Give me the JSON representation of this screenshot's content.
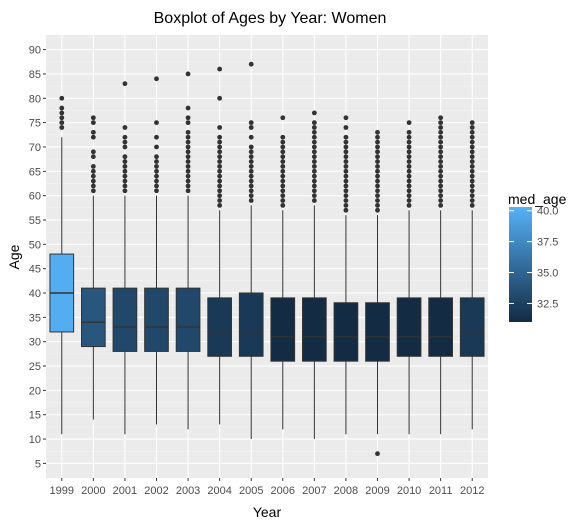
{
  "chart_data": {
    "type": "boxplot",
    "title": "Boxplot of Ages by Year: Women",
    "xlabel": "Year",
    "ylabel": "Age",
    "ylim": [
      2,
      93
    ],
    "yticks": [
      5,
      10,
      15,
      20,
      25,
      30,
      35,
      40,
      45,
      50,
      55,
      60,
      65,
      70,
      75,
      80,
      85,
      90
    ],
    "grid": true,
    "categories": [
      "1999",
      "2000",
      "2001",
      "2002",
      "2003",
      "2004",
      "2005",
      "2006",
      "2007",
      "2008",
      "2009",
      "2010",
      "2011",
      "2012"
    ],
    "boxes": [
      {
        "year": "1999",
        "min": 11,
        "q1": 32,
        "median": 40,
        "q3": 48,
        "max": 72,
        "med_age": 40,
        "outliers": [
          74,
          75,
          76,
          77,
          78,
          80
        ]
      },
      {
        "year": "2000",
        "min": 14,
        "q1": 29,
        "median": 34,
        "q3": 41,
        "max": 60,
        "med_age": 34,
        "outliers": [
          61,
          62,
          63,
          64,
          65,
          66,
          68,
          69,
          72,
          73,
          75,
          76
        ]
      },
      {
        "year": "2001",
        "min": 11,
        "q1": 28,
        "median": 33,
        "q3": 41,
        "max": 60,
        "med_age": 33,
        "outliers": [
          61,
          62,
          63,
          64,
          65,
          66,
          67,
          68,
          70,
          71,
          72,
          74,
          83
        ]
      },
      {
        "year": "2002",
        "min": 13,
        "q1": 28,
        "median": 33,
        "q3": 41,
        "max": 60,
        "med_age": 33,
        "outliers": [
          61,
          62,
          63,
          64,
          65,
          66,
          67,
          68,
          70,
          72,
          75,
          84
        ]
      },
      {
        "year": "2003",
        "min": 12,
        "q1": 28,
        "median": 33,
        "q3": 41,
        "max": 60,
        "med_age": 33,
        "outliers": [
          61,
          62,
          63,
          64,
          65,
          66,
          67,
          68,
          69,
          70,
          71,
          72,
          73,
          75,
          76,
          78,
          85
        ]
      },
      {
        "year": "2004",
        "min": 13,
        "q1": 27,
        "median": 32,
        "q3": 39,
        "max": 57,
        "med_age": 32,
        "outliers": [
          58,
          59,
          60,
          61,
          62,
          63,
          64,
          65,
          66,
          67,
          68,
          69,
          70,
          71,
          72,
          74,
          80,
          86
        ]
      },
      {
        "year": "2005",
        "min": 10,
        "q1": 27,
        "median": 32,
        "q3": 40,
        "max": 58,
        "med_age": 32,
        "outliers": [
          59,
          60,
          61,
          62,
          63,
          64,
          65,
          66,
          67,
          68,
          69,
          70,
          72,
          74,
          75,
          87
        ]
      },
      {
        "year": "2006",
        "min": 12,
        "q1": 26,
        "median": 31,
        "q3": 39,
        "max": 57,
        "med_age": 31,
        "outliers": [
          58,
          59,
          60,
          61,
          62,
          63,
          64,
          65,
          66,
          67,
          68,
          69,
          70,
          71,
          72,
          76
        ]
      },
      {
        "year": "2007",
        "min": 10,
        "q1": 26,
        "median": 31,
        "q3": 39,
        "max": 58,
        "med_age": 31,
        "outliers": [
          59,
          60,
          61,
          62,
          63,
          64,
          65,
          66,
          67,
          68,
          69,
          70,
          71,
          72,
          73,
          74,
          75,
          77
        ]
      },
      {
        "year": "2008",
        "min": 11,
        "q1": 26,
        "median": 31,
        "q3": 38,
        "max": 56,
        "med_age": 31,
        "outliers": [
          57,
          58,
          59,
          60,
          61,
          62,
          63,
          64,
          65,
          66,
          67,
          68,
          69,
          70,
          71,
          72,
          74,
          76
        ]
      },
      {
        "year": "2009",
        "min": 11,
        "q1": 26,
        "median": 31,
        "q3": 38,
        "max": 56,
        "med_age": 31,
        "outliers": [
          7,
          57,
          58,
          59,
          60,
          61,
          62,
          63,
          64,
          65,
          66,
          67,
          68,
          69,
          70,
          71,
          72,
          73
        ]
      },
      {
        "year": "2010",
        "min": 11,
        "q1": 27,
        "median": 31,
        "q3": 39,
        "max": 57,
        "med_age": 31,
        "outliers": [
          58,
          59,
          60,
          61,
          62,
          63,
          64,
          65,
          66,
          67,
          68,
          69,
          70,
          71,
          72,
          73,
          75
        ]
      },
      {
        "year": "2011",
        "min": 11,
        "q1": 27,
        "median": 31,
        "q3": 39,
        "max": 57,
        "med_age": 31,
        "outliers": [
          58,
          59,
          60,
          61,
          62,
          63,
          64,
          65,
          66,
          67,
          68,
          69,
          70,
          71,
          72,
          73,
          74,
          75,
          76
        ]
      },
      {
        "year": "2012",
        "min": 12,
        "q1": 27,
        "median": 32,
        "q3": 39,
        "max": 57,
        "med_age": 32,
        "outliers": [
          58,
          59,
          60,
          61,
          62,
          63,
          64,
          65,
          66,
          67,
          68,
          69,
          70,
          71,
          72,
          73,
          74,
          75
        ]
      }
    ],
    "legend": {
      "title": "med_age",
      "placement": "right",
      "labels": [
        "40.0",
        "37.5",
        "35.0",
        "32.5"
      ],
      "label_values": [
        40,
        37.5,
        35,
        32.5
      ],
      "range": [
        31,
        40.3
      ],
      "color_low": "#132b43",
      "color_high": "#56b1f7"
    },
    "colors": {
      "panel_bg": "#ebebeb",
      "grid_major": "#ffffff",
      "box_outline": "#333333",
      "outlier": "#333333",
      "text": "#4d4d4d"
    }
  }
}
